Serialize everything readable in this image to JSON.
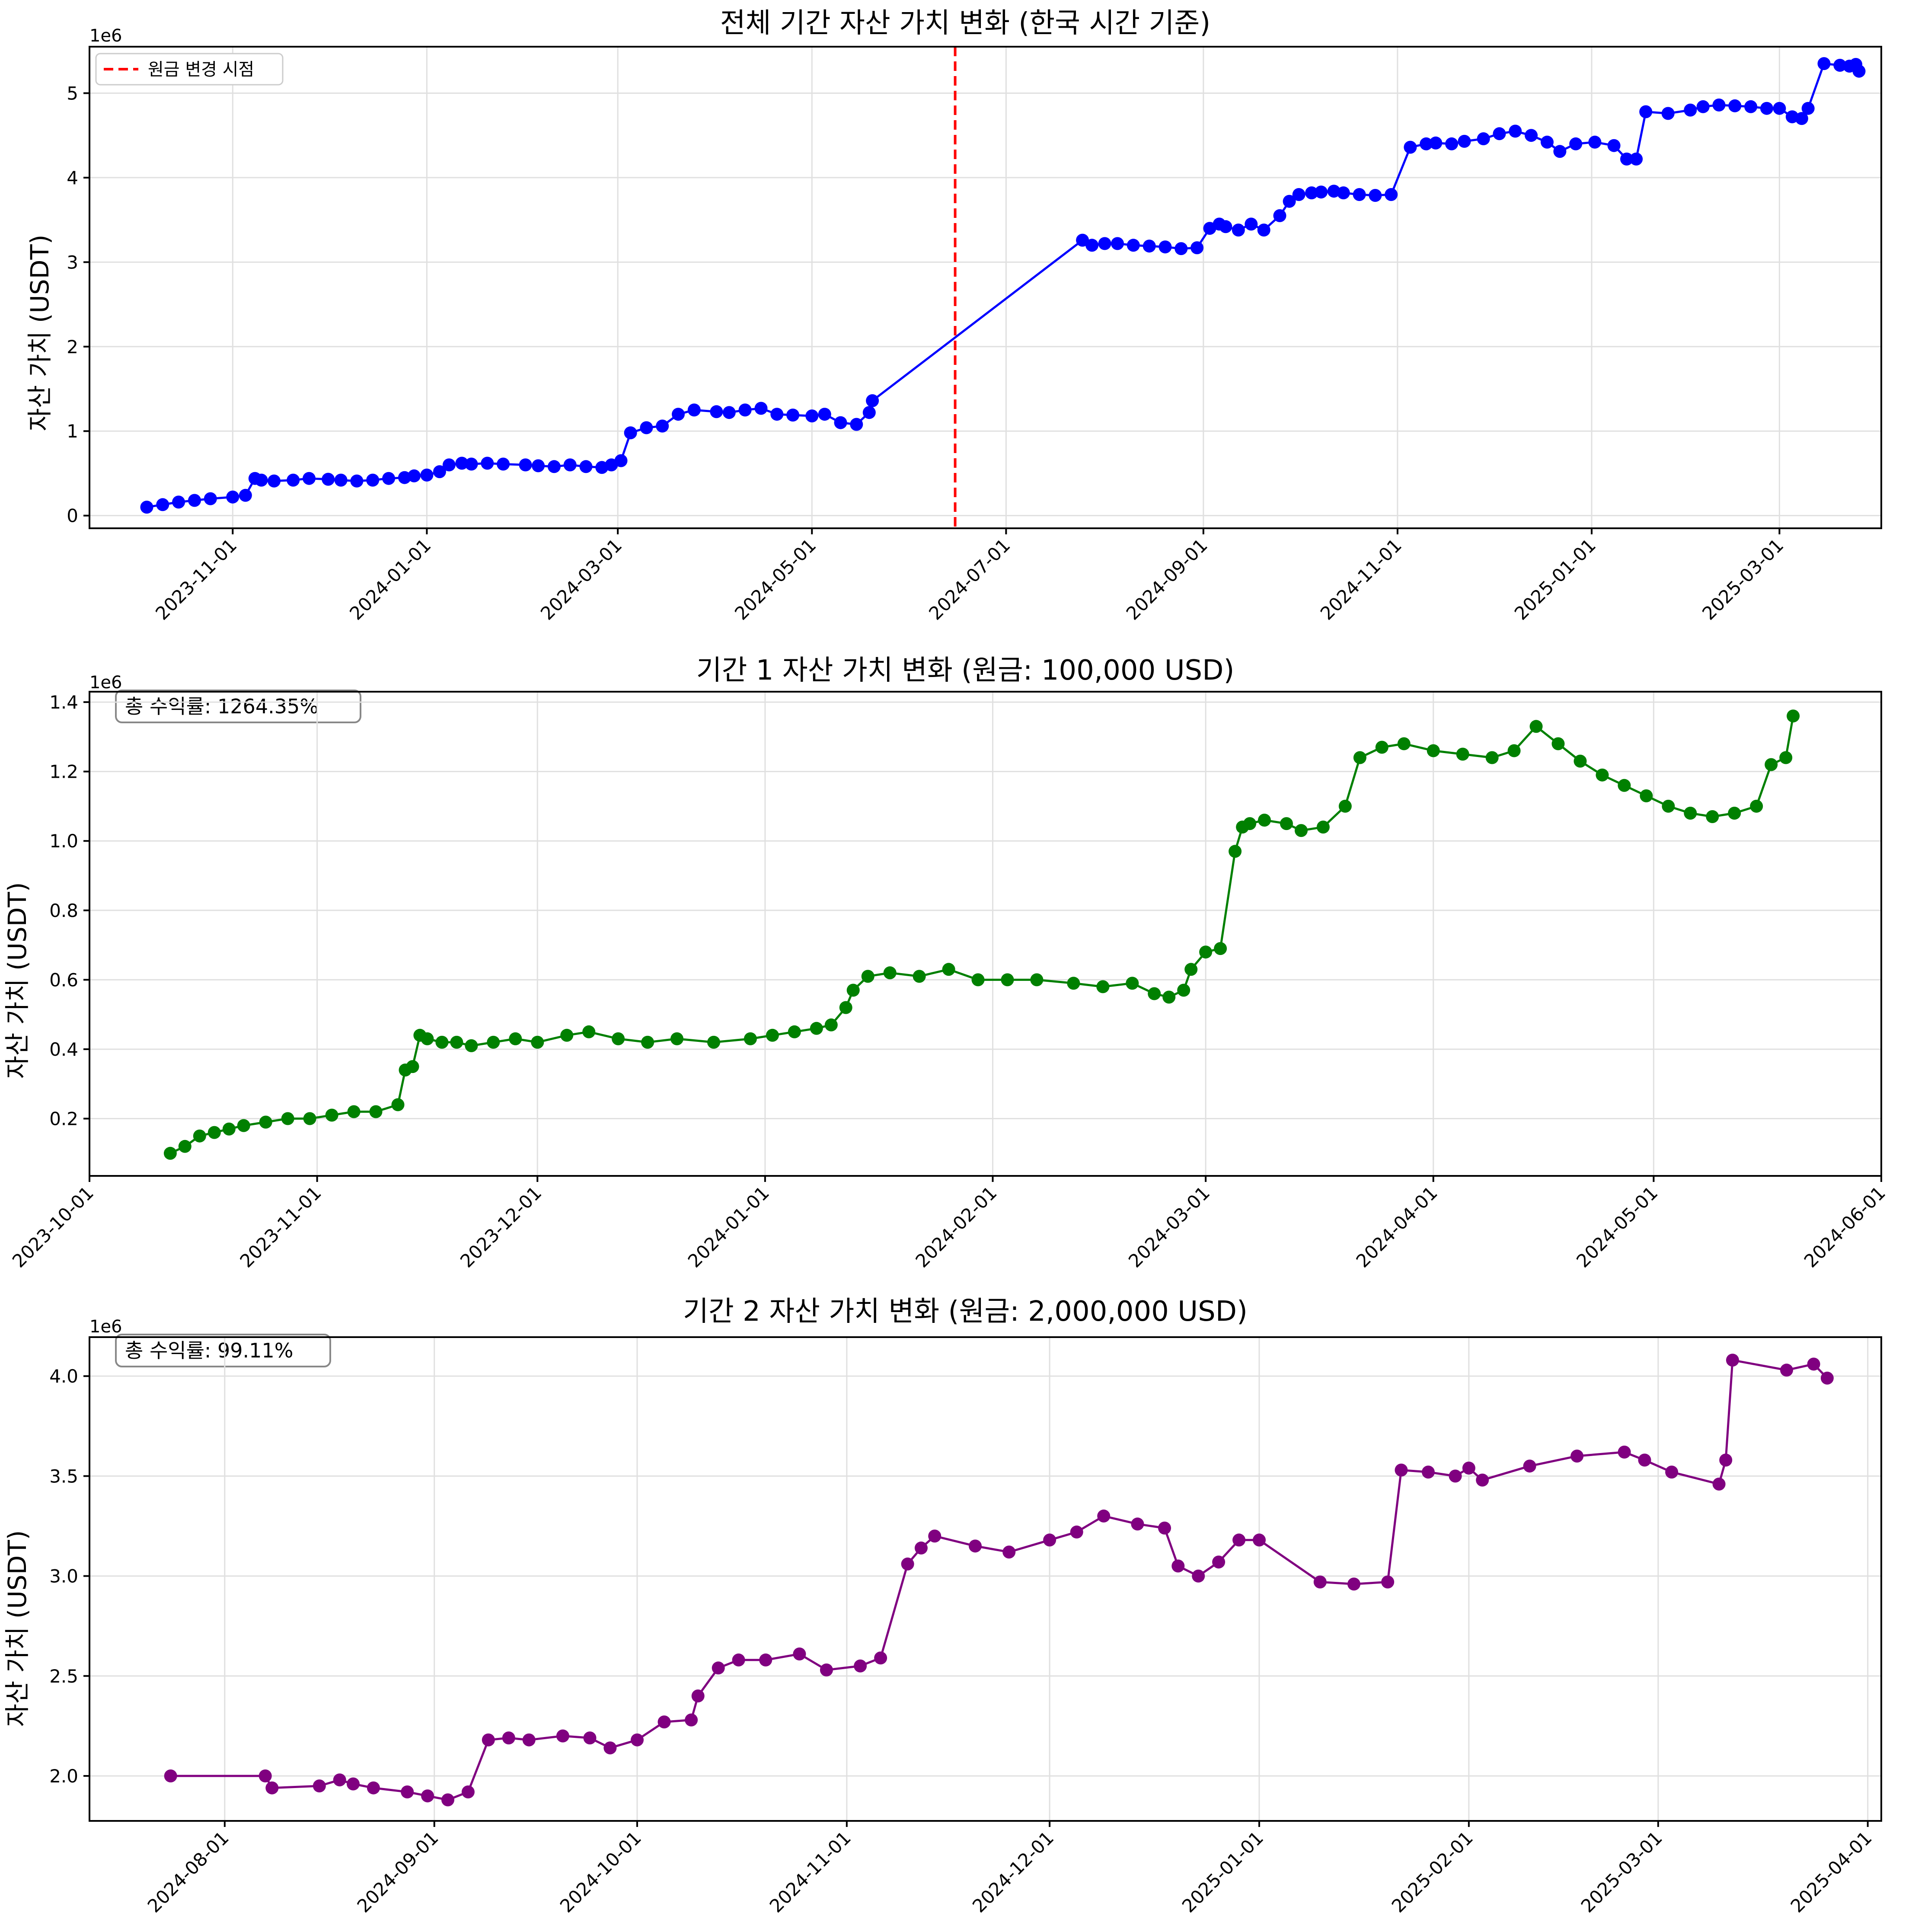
{
  "chart_data": [
    {
      "type": "line",
      "title": "전체 기간 자산 가치 변화 (한국 시간 기준)",
      "xlabel": "",
      "ylabel": "자산 가치 (USDT)",
      "y_offset_label": "1e6",
      "x_type": "date",
      "xlim": [
        "2023-09-17",
        "2025-04-02"
      ],
      "ylim": [
        -0.15,
        5.55
      ],
      "x_ticks": [
        "2023-11-01",
        "2024-01-01",
        "2024-03-01",
        "2024-05-01",
        "2024-07-01",
        "2024-09-01",
        "2024-11-01",
        "2025-01-01",
        "2025-03-01"
      ],
      "y_ticks": [
        0,
        1,
        2,
        3,
        4,
        5
      ],
      "y_tick_labels": [
        "0",
        "1",
        "2",
        "3",
        "4",
        "5"
      ],
      "grid": true,
      "legend": {
        "position": "top-left",
        "entries": [
          "원금 변경 시점"
        ]
      },
      "vline": {
        "x": "2024-06-15",
        "label": "원금 변경 시점",
        "color": "#ff0000",
        "style": "dashed"
      },
      "series": [
        {
          "color": "#0000ff",
          "x": [
            "2023-10-05",
            "2023-10-10",
            "2023-10-15",
            "2023-10-20",
            "2023-10-25",
            "2023-11-01",
            "2023-11-05",
            "2023-11-08",
            "2023-11-10",
            "2023-11-14",
            "2023-11-20",
            "2023-11-25",
            "2023-12-01",
            "2023-12-05",
            "2023-12-10",
            "2023-12-15",
            "2023-12-20",
            "2023-12-25",
            "2023-12-28",
            "2024-01-01",
            "2024-01-05",
            "2024-01-08",
            "2024-01-12",
            "2024-01-15",
            "2024-01-20",
            "2024-01-25",
            "2024-02-01",
            "2024-02-05",
            "2024-02-10",
            "2024-02-15",
            "2024-02-20",
            "2024-02-25",
            "2024-02-28",
            "2024-03-02",
            "2024-03-05",
            "2024-03-10",
            "2024-03-15",
            "2024-03-20",
            "2024-03-25",
            "2024-04-01",
            "2024-04-05",
            "2024-04-10",
            "2024-04-15",
            "2024-04-20",
            "2024-04-25",
            "2024-05-01",
            "2024-05-05",
            "2024-05-10",
            "2024-05-15",
            "2024-05-19",
            "2024-05-20",
            "2024-07-25",
            "2024-07-28",
            "2024-08-01",
            "2024-08-05",
            "2024-08-10",
            "2024-08-15",
            "2024-08-20",
            "2024-08-25",
            "2024-08-30",
            "2024-09-03",
            "2024-09-06",
            "2024-09-08",
            "2024-09-12",
            "2024-09-16",
            "2024-09-20",
            "2024-09-25",
            "2024-09-28",
            "2024-10-01",
            "2024-10-05",
            "2024-10-08",
            "2024-10-12",
            "2024-10-15",
            "2024-10-20",
            "2024-10-25",
            "2024-10-30",
            "2024-11-05",
            "2024-11-10",
            "2024-11-13",
            "2024-11-18",
            "2024-11-22",
            "2024-11-28",
            "2024-12-03",
            "2024-12-08",
            "2024-12-13",
            "2024-12-18",
            "2024-12-22",
            "2024-12-27",
            "2025-01-02",
            "2025-01-08",
            "2025-01-12",
            "2025-01-15",
            "2025-01-18",
            "2025-01-25",
            "2025-02-01",
            "2025-02-05",
            "2025-02-10",
            "2025-02-15",
            "2025-02-20",
            "2025-02-25",
            "2025-03-01",
            "2025-03-05",
            "2025-03-08",
            "2025-03-10",
            "2025-03-15",
            "2025-03-20",
            "2025-03-23",
            "2025-03-25",
            "2025-03-26"
          ],
          "values": [
            0.1,
            0.13,
            0.16,
            0.18,
            0.2,
            0.22,
            0.24,
            0.44,
            0.42,
            0.41,
            0.42,
            0.44,
            0.43,
            0.42,
            0.41,
            0.42,
            0.44,
            0.45,
            0.47,
            0.48,
            0.52,
            0.6,
            0.62,
            0.61,
            0.62,
            0.61,
            0.6,
            0.59,
            0.58,
            0.6,
            0.58,
            0.57,
            0.6,
            0.65,
            0.98,
            1.04,
            1.06,
            1.2,
            1.25,
            1.23,
            1.22,
            1.25,
            1.27,
            1.2,
            1.19,
            1.18,
            1.2,
            1.1,
            1.08,
            1.22,
            1.36,
            3.26,
            3.2,
            3.22,
            3.22,
            3.2,
            3.19,
            3.18,
            3.16,
            3.17,
            3.4,
            3.45,
            3.42,
            3.38,
            3.45,
            3.38,
            3.55,
            3.72,
            3.8,
            3.82,
            3.83,
            3.84,
            3.82,
            3.8,
            3.79,
            3.8,
            4.36,
            4.4,
            4.41,
            4.4,
            4.43,
            4.46,
            4.52,
            4.55,
            4.5,
            4.42,
            4.31,
            4.4,
            4.42,
            4.38,
            4.22,
            4.22,
            4.78,
            4.76,
            4.8,
            4.84,
            4.86,
            4.85,
            4.84,
            4.82,
            4.82,
            4.72,
            4.7,
            4.82,
            5.35,
            5.33,
            5.32,
            5.34,
            5.26
          ]
        }
      ]
    },
    {
      "type": "line",
      "title": "기간 1 자산 가치 변화 (원금: 100,000 USD)",
      "xlabel": "",
      "ylabel": "자산 가치 (USDT)",
      "y_offset_label": "1e6",
      "x_type": "date",
      "xlim": [
        "2023-10-01",
        "2024-06-01"
      ],
      "ylim": [
        0.035,
        1.43
      ],
      "x_ticks": [
        "2023-10-01",
        "2023-11-01",
        "2023-12-01",
        "2024-01-01",
        "2024-02-01",
        "2024-03-01",
        "2024-04-01",
        "2024-05-01",
        "2024-06-01"
      ],
      "y_ticks": [
        0.2,
        0.4,
        0.6,
        0.8,
        1.0,
        1.2,
        1.4
      ],
      "y_tick_labels": [
        "0.2",
        "0.4",
        "0.6",
        "0.8",
        "1.0",
        "1.2",
        "1.4"
      ],
      "grid": true,
      "annotation": "총 수익률: 1264.35%",
      "series": [
        {
          "color": "#008000",
          "x": [
            "2023-10-12",
            "2023-10-14",
            "2023-10-16",
            "2023-10-18",
            "2023-10-20",
            "2023-10-22",
            "2023-10-25",
            "2023-10-28",
            "2023-10-31",
            "2023-11-03",
            "2023-11-06",
            "2023-11-09",
            "2023-11-12",
            "2023-11-13",
            "2023-11-14",
            "2023-11-15",
            "2023-11-16",
            "2023-11-18",
            "2023-11-20",
            "2023-11-22",
            "2023-11-25",
            "2023-11-28",
            "2023-12-01",
            "2023-12-05",
            "2023-12-08",
            "2023-12-12",
            "2023-12-16",
            "2023-12-20",
            "2023-12-25",
            "2023-12-30",
            "2024-01-02",
            "2024-01-05",
            "2024-01-08",
            "2024-01-10",
            "2024-01-12",
            "2024-01-13",
            "2024-01-15",
            "2024-01-18",
            "2024-01-22",
            "2024-01-26",
            "2024-01-30",
            "2024-02-03",
            "2024-02-07",
            "2024-02-12",
            "2024-02-16",
            "2024-02-20",
            "2024-02-23",
            "2024-02-25",
            "2024-02-27",
            "2024-02-28",
            "2024-03-01",
            "2024-03-03",
            "2024-03-05",
            "2024-03-06",
            "2024-03-07",
            "2024-03-09",
            "2024-03-12",
            "2024-03-14",
            "2024-03-17",
            "2024-03-20",
            "2024-03-22",
            "2024-03-25",
            "2024-03-28",
            "2024-04-01",
            "2024-04-05",
            "2024-04-09",
            "2024-04-12",
            "2024-04-15",
            "2024-04-18",
            "2024-04-21",
            "2024-04-24",
            "2024-04-27",
            "2024-04-30",
            "2024-05-03",
            "2024-05-06",
            "2024-05-09",
            "2024-05-12",
            "2024-05-15",
            "2024-05-17",
            "2024-05-19",
            "2024-05-20"
          ],
          "values": [
            0.1,
            0.12,
            0.15,
            0.16,
            0.17,
            0.18,
            0.19,
            0.2,
            0.2,
            0.21,
            0.22,
            0.22,
            0.24,
            0.34,
            0.35,
            0.44,
            0.43,
            0.42,
            0.42,
            0.41,
            0.42,
            0.43,
            0.42,
            0.44,
            0.45,
            0.43,
            0.42,
            0.43,
            0.42,
            0.43,
            0.44,
            0.45,
            0.46,
            0.47,
            0.52,
            0.57,
            0.61,
            0.62,
            0.61,
            0.63,
            0.6,
            0.6,
            0.6,
            0.59,
            0.58,
            0.59,
            0.56,
            0.55,
            0.57,
            0.63,
            0.68,
            0.69,
            0.97,
            1.04,
            1.05,
            1.06,
            1.05,
            1.03,
            1.04,
            1.1,
            1.24,
            1.27,
            1.28,
            1.26,
            1.25,
            1.24,
            1.26,
            1.33,
            1.28,
            1.23,
            1.19,
            1.16,
            1.13,
            1.1,
            1.08,
            1.07,
            1.08,
            1.1,
            1.22,
            1.24,
            1.36
          ]
        }
      ]
    },
    {
      "type": "line",
      "title": "기간 2 자산 가치 변화 (원금: 2,000,000 USD)",
      "xlabel": "",
      "ylabel": "자산 가치 (USDT)",
      "y_offset_label": "1e6",
      "x_type": "date",
      "xlim": [
        "2024-07-12",
        "2025-04-03"
      ],
      "ylim": [
        1.775,
        4.195
      ],
      "x_ticks": [
        "2024-08-01",
        "2024-09-01",
        "2024-10-01",
        "2024-11-01",
        "2024-12-01",
        "2025-01-01",
        "2025-02-01",
        "2025-03-01",
        "2025-04-01"
      ],
      "y_ticks": [
        2.0,
        2.5,
        3.0,
        3.5,
        4.0
      ],
      "y_tick_labels": [
        "2.0",
        "2.5",
        "3.0",
        "3.5",
        "4.0"
      ],
      "grid": true,
      "annotation": "총 수익률: 99.11%",
      "series": [
        {
          "color": "#800080",
          "x": [
            "2024-07-24",
            "2024-08-07",
            "2024-08-08",
            "2024-08-15",
            "2024-08-18",
            "2024-08-20",
            "2024-08-23",
            "2024-08-28",
            "2024-08-31",
            "2024-09-03",
            "2024-09-06",
            "2024-09-09",
            "2024-09-12",
            "2024-09-15",
            "2024-09-20",
            "2024-09-24",
            "2024-09-27",
            "2024-10-01",
            "2024-10-05",
            "2024-10-09",
            "2024-10-10",
            "2024-10-13",
            "2024-10-16",
            "2024-10-20",
            "2024-10-25",
            "2024-10-29",
            "2024-11-03",
            "2024-11-06",
            "2024-11-10",
            "2024-11-12",
            "2024-11-14",
            "2024-11-20",
            "2024-11-25",
            "2024-12-01",
            "2024-12-05",
            "2024-12-09",
            "2024-12-14",
            "2024-12-18",
            "2024-12-20",
            "2024-12-23",
            "2024-12-26",
            "2024-12-29",
            "2025-01-01",
            "2025-01-10",
            "2025-01-15",
            "2025-01-20",
            "2025-01-22",
            "2025-01-26",
            "2025-01-30",
            "2025-02-01",
            "2025-02-03",
            "2025-02-10",
            "2025-02-17",
            "2025-02-24",
            "2025-02-27",
            "2025-03-03",
            "2025-03-10",
            "2025-03-11",
            "2025-03-12",
            "2025-03-20",
            "2025-03-24",
            "2025-03-26"
          ],
          "values": [
            2.0,
            2.0,
            1.94,
            1.95,
            1.98,
            1.96,
            1.94,
            1.92,
            1.9,
            1.88,
            1.92,
            2.18,
            2.19,
            2.18,
            2.2,
            2.19,
            2.14,
            2.18,
            2.27,
            2.28,
            2.4,
            2.54,
            2.58,
            2.58,
            2.61,
            2.53,
            2.55,
            2.59,
            3.06,
            3.14,
            3.2,
            3.15,
            3.12,
            3.18,
            3.22,
            3.3,
            3.26,
            3.24,
            3.05,
            3.0,
            3.07,
            3.18,
            3.18,
            2.97,
            2.96,
            2.97,
            3.53,
            3.52,
            3.5,
            3.54,
            3.48,
            3.55,
            3.6,
            3.62,
            3.58,
            3.52,
            3.46,
            3.58,
            4.08,
            4.03,
            4.06,
            3.99
          ]
        }
      ]
    }
  ]
}
